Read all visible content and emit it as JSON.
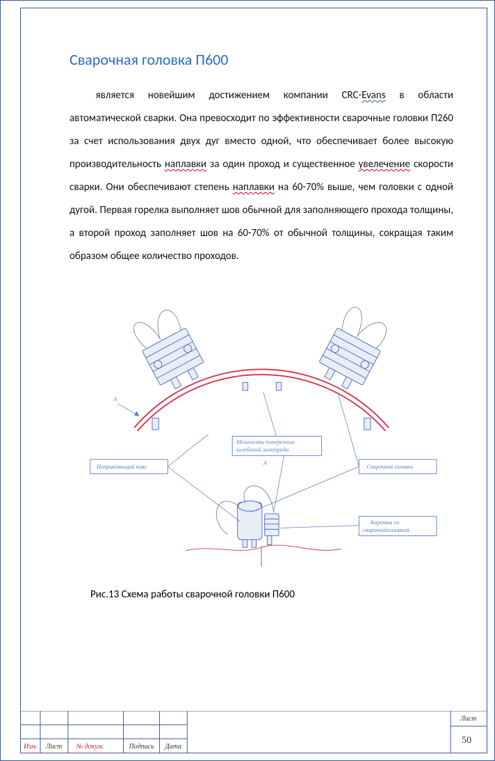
{
  "title": {
    "text": "Сварочная головка П600",
    "color": "#2a6bc4"
  },
  "paragraph": {
    "segments": [
      {
        "t": "является новейшим достижением компании CRC-",
        "cls": ""
      },
      {
        "t": "Evans",
        "cls": "bluewave"
      },
      {
        "t": " в области автоматической сварки. Она превосходит по эффективности сварочные головки П260 за счет использования двух дуг вместо одной, что обеспечивает более высокую производительность ",
        "cls": ""
      },
      {
        "t": "наплавки",
        "cls": "spellwave"
      },
      {
        "t": " за один проход и существенное ",
        "cls": ""
      },
      {
        "t": "увелечение",
        "cls": "spellwave"
      },
      {
        "t": " скорости сварки. Они обеспечивают степень ",
        "cls": ""
      },
      {
        "t": "наплавки",
        "cls": "spellwave"
      },
      {
        "t": " на 60-70% выше, чем головки с одной дугой. Первая горелка выполняет шов обычной для заполняющего прохода толщины, а второй проход заполняет шов на 60-70% от обычной толщины, сокращая таким образом общее количество проходов.",
        "cls": ""
      }
    ]
  },
  "figure": {
    "caption": "Рис.13 Схема работы сварочной головки П600",
    "callouts": {
      "guide_belt": "Направляющий пояс",
      "transverse": "Механизмы поперечных колебаний электрода",
      "head": "Сварочная головка",
      "carriage_l1": "Каретка со",
      "carriage_l2": "сварочнойголовкой"
    },
    "letter_A": "А",
    "colors": {
      "blue": "#5b7fc7",
      "mech": "#4a6db8",
      "red": "#d6344a",
      "fill": "#e8edf7"
    }
  },
  "titleblock": {
    "labels": {
      "izm": "Изм.",
      "list": "Лист",
      "ndokum": "№ докум.",
      "podpis": "Подпись",
      "data": "Дата",
      "list_header": "Лист"
    },
    "page_number": "50",
    "line_color": "#3b5998"
  }
}
